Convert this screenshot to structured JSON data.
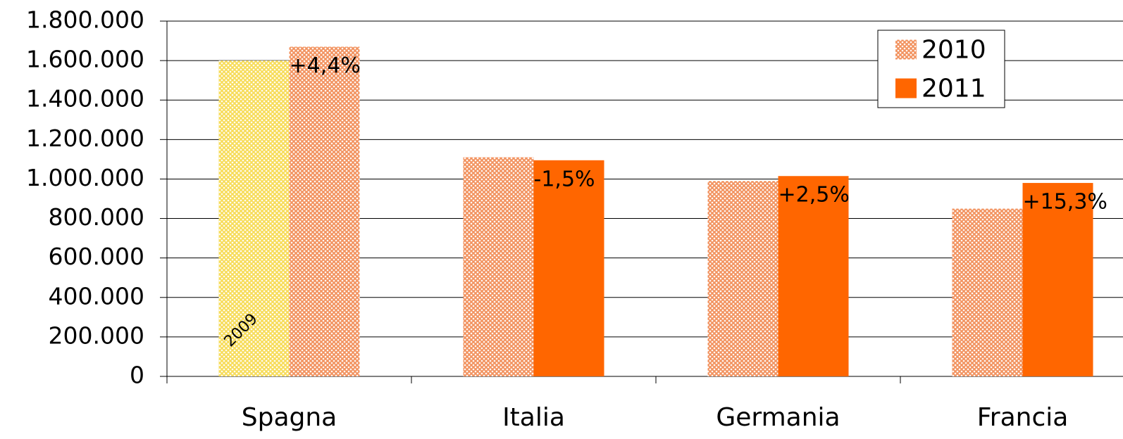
{
  "chart_data": {
    "type": "bar",
    "categories": [
      "Spagna",
      "Italia",
      "Germania",
      "Francia"
    ],
    "series": [
      {
        "name": "2009",
        "color": "#f7dc5a",
        "pattern": true,
        "in_legend": false,
        "values": [
          1600000,
          null,
          null,
          null
        ]
      },
      {
        "name": "2010",
        "color": "#f29360",
        "pattern": true,
        "values": [
          1670000,
          1110000,
          990000,
          850000
        ]
      },
      {
        "name": "2011",
        "color": "#ff6600",
        "pattern": false,
        "values": [
          null,
          1095000,
          1015000,
          980000
        ]
      }
    ],
    "change_labels": [
      "+4,4%",
      "-1,5%",
      "+2,5%",
      "+15,3%"
    ],
    "ylim": [
      0,
      1800000
    ],
    "yticks": [
      0,
      {
        "value": 200000,
        "label": "200.000"
      },
      {
        "value": 400000,
        "label": "400.000"
      },
      {
        "value": 600000,
        "label": "600.000"
      },
      {
        "value": 800000,
        "label": "800.000"
      },
      {
        "value": 1000000,
        "label": "1.000.000"
      },
      {
        "value": 1200000,
        "label": "1.200.000"
      },
      {
        "value": 1400000,
        "label": "1.400.000"
      },
      {
        "value": 1600000,
        "label": "1.600.000"
      },
      {
        "value": 1800000,
        "label": "1.800.000"
      }
    ],
    "grid": true,
    "legend": "top-right"
  }
}
